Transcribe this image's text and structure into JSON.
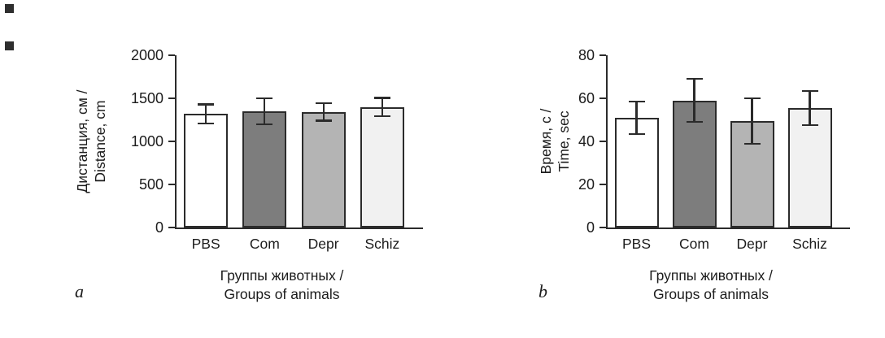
{
  "page": {
    "background": "#ffffff",
    "axis_color": "#2b2b2b",
    "text_color": "#1c1c1c"
  },
  "decorations": [
    "black-square-marker",
    "black-square-marker"
  ],
  "chart_data": [
    {
      "type": "bar",
      "panel_label": "a",
      "title": "",
      "ylabel": "Дистанция, см / Distance, cm",
      "ylabel_lines": [
        "Дистанция, см /",
        "Distance, cm"
      ],
      "xlabel": "Группы животных / Groups of animals",
      "xlabel_lines": [
        "Группы животных /",
        "Groups of animals"
      ],
      "categories": [
        "PBS",
        "Com",
        "Depr",
        "Schiz"
      ],
      "values": [
        1320,
        1350,
        1340,
        1400
      ],
      "errors": [
        110,
        150,
        100,
        105
      ],
      "ylim": [
        0,
        2000
      ],
      "ytick_step": 500,
      "grid": false,
      "legend": null,
      "bar_fills": [
        "#ffffff",
        "#7d7d7d",
        "#b4b4b4",
        "#f1f1f1"
      ],
      "bar_border": "#2b2b2b"
    },
    {
      "type": "bar",
      "panel_label": "b",
      "title": "",
      "ylabel": "Время, с / Time, sec",
      "ylabel_lines": [
        "Время, с /",
        "Time, sec"
      ],
      "xlabel": "Группы животных / Groups of animals",
      "xlabel_lines": [
        "Группы животных /",
        "Groups of animals"
      ],
      "categories": [
        "PBS",
        "Com",
        "Depr",
        "Schiz"
      ],
      "values": [
        51,
        59,
        49.5,
        55.5
      ],
      "errors": [
        7.5,
        10,
        10.5,
        8
      ],
      "ylim": [
        0,
        80
      ],
      "ytick_step": 20,
      "grid": false,
      "legend": null,
      "bar_fills": [
        "#ffffff",
        "#7d7d7d",
        "#b4b4b4",
        "#f1f1f1"
      ],
      "bar_border": "#2b2b2b"
    }
  ]
}
